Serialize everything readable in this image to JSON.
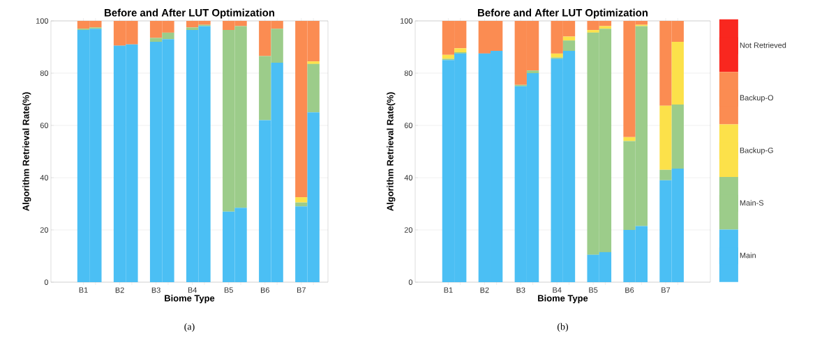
{
  "chart_data": [
    {
      "type": "bar",
      "stacked": true,
      "title": "Before and After LUT Optimization",
      "xlabel": "Biome Type",
      "ylabel": "Algorithm Retrieval Rate(%)",
      "categories": [
        "B1",
        null,
        "B2",
        null,
        "B3",
        null,
        "B4",
        null,
        "B5",
        null,
        "B6",
        null,
        "B7",
        null
      ],
      "ylim": [
        0,
        100
      ],
      "yticks": [
        0,
        20,
        40,
        60,
        80,
        100
      ],
      "grid": "y",
      "legend": false,
      "series": [
        {
          "color": "#4bbff4",
          "values": [
            96.5,
            97,
            90.5,
            91,
            92,
            93,
            96.5,
            98,
            27,
            28.5,
            62,
            84,
            29,
            65
          ]
        },
        {
          "color": "#9ccc8a",
          "values": [
            0.5,
            0.5,
            0,
            0,
            1.5,
            2.5,
            1,
            0.5,
            69.5,
            69.5,
            24.5,
            13,
            1.5,
            18.5
          ]
        },
        {
          "color": "#fce14a",
          "values": [
            0,
            0,
            0,
            0,
            0,
            0,
            0,
            0,
            0,
            0,
            0,
            0,
            2,
            1
          ]
        },
        {
          "color": "#fb8c52",
          "values": [
            3,
            2.5,
            9.5,
            9,
            6.5,
            4.5,
            2.5,
            1.5,
            3.5,
            2,
            13.5,
            3,
            67.5,
            15.5
          ]
        },
        {
          "color": "#f9271f",
          "values": [
            0,
            0,
            0,
            0,
            0,
            0,
            0,
            0,
            0,
            0,
            0,
            0,
            0,
            0
          ]
        }
      ],
      "annotations": [
        "(a)"
      ]
    },
    {
      "type": "bar",
      "stacked": true,
      "title": "Before and After LUT Optimization",
      "xlabel": "Biome Type",
      "ylabel": "Algorithm Retrieval Rate(%)",
      "categories": [
        "B1",
        null,
        "B2",
        null,
        "B3",
        null,
        "B4",
        null,
        "B5",
        null,
        "B6",
        null,
        "B7",
        null
      ],
      "ylim": [
        0,
        100
      ],
      "yticks": [
        0,
        20,
        40,
        60,
        80,
        100
      ],
      "grid": "y",
      "legend": "right",
      "series": [
        {
          "name": "Main",
          "color": "#4bbff4",
          "values": [
            85,
            87.5,
            87.5,
            88.5,
            75,
            80,
            85.5,
            88.5,
            10.5,
            11.5,
            20,
            21.5,
            39,
            43.5
          ]
        },
        {
          "name": "Main-S",
          "color": "#9ccc8a",
          "values": [
            0.5,
            0.5,
            0,
            0,
            0.5,
            1,
            0.5,
            4,
            85,
            85.5,
            34,
            76.5,
            4,
            24.5
          ]
        },
        {
          "name": "Backup-G",
          "color": "#fce14a",
          "values": [
            1.5,
            1.5,
            0,
            0,
            0,
            0,
            1.5,
            1.5,
            1,
            1,
            1.5,
            0.5,
            24.5,
            24
          ]
        },
        {
          "name": "Backup-O",
          "color": "#fb8c52",
          "values": [
            13,
            10.5,
            12.5,
            11.5,
            24.5,
            19,
            12.5,
            6,
            3.5,
            2,
            44.5,
            1.5,
            32.5,
            8
          ]
        },
        {
          "name": "Not Retrieved",
          "color": "#f9271f",
          "values": [
            0,
            0,
            0,
            0,
            0,
            0,
            0,
            0,
            0,
            0,
            0,
            0,
            0,
            0
          ]
        }
      ],
      "annotations": [
        "(b)"
      ]
    }
  ]
}
